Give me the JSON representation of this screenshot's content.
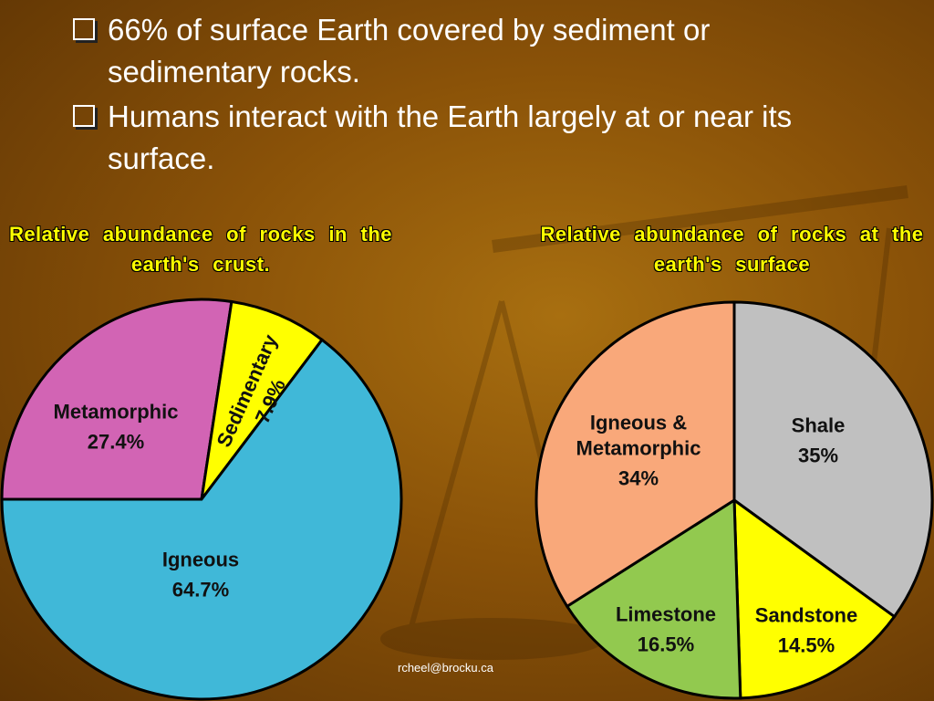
{
  "bullets": [
    "66% of surface Earth covered by sediment or sedimentary rocks.",
    "Humans interact with the Earth largely at or near its surface."
  ],
  "footer": "rcheel@brocku.ca",
  "chart_data": [
    {
      "type": "pie",
      "title": "Relative abundance of rocks in the earth's crust.",
      "categories": [
        "Metamorphic",
        "Sedimentary",
        "Igneous"
      ],
      "values": [
        27.4,
        7.9,
        64.7
      ],
      "value_labels": [
        "27.4%",
        "7.9%",
        "64.7%"
      ],
      "colors": [
        "#d264b4",
        "#ffff00",
        "#40b8d8"
      ]
    },
    {
      "type": "pie",
      "title": "Relative abundance of rocks at the earth's surface",
      "categories": [
        "Shale",
        "Sandstone",
        "Limestone",
        "Igneous & Metamorphic"
      ],
      "values": [
        35,
        14.5,
        16.5,
        34
      ],
      "value_labels": [
        "35%",
        "14.5%",
        "16.5%",
        "34%"
      ],
      "colors": [
        "#c0c0c0",
        "#ffff00",
        "#92c94f",
        "#f9a87a"
      ]
    }
  ]
}
